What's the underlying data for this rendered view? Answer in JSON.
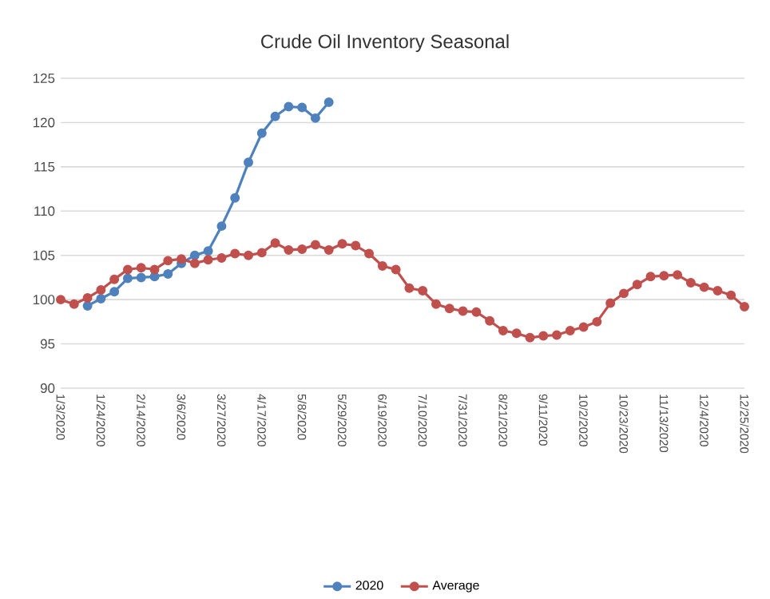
{
  "chart_data": {
    "type": "line",
    "title": "Crude Oil Inventory Seasonal",
    "categories": [
      "1/3/2020",
      null,
      null,
      "1/24/2020",
      null,
      null,
      "2/14/2020",
      null,
      null,
      "3/6/2020",
      null,
      null,
      "3/27/2020",
      null,
      null,
      "4/17/2020",
      null,
      null,
      "5/8/2020",
      null,
      null,
      "5/29/2020",
      null,
      null,
      "6/19/2020",
      null,
      null,
      "7/10/2020",
      null,
      null,
      "7/31/2020",
      null,
      null,
      "8/21/2020",
      null,
      null,
      "9/11/2020",
      null,
      null,
      "10/2/2020",
      null,
      null,
      "10/23/2020",
      null,
      null,
      "11/13/2020",
      null,
      null,
      "12/4/2020",
      null,
      null,
      "12/25/2020"
    ],
    "series": [
      {
        "name": "2020",
        "color": "#4f81bd",
        "values": [
          null,
          null,
          99.3,
          100.1,
          100.9,
          102.4,
          102.5,
          102.6,
          102.9,
          104.1,
          105.0,
          105.5,
          108.3,
          111.5,
          115.5,
          118.8,
          120.7,
          121.8,
          121.7,
          120.5,
          122.3,
          null,
          null,
          null,
          null,
          null,
          null,
          null,
          null,
          null,
          null,
          null,
          null,
          null,
          null,
          null,
          null,
          null,
          null,
          null,
          null,
          null,
          null,
          null,
          null,
          null,
          null,
          null,
          null,
          null,
          null,
          null
        ]
      },
      {
        "name": "Average",
        "color": "#c0504d",
        "values": [
          100,
          99.5,
          100.2,
          101.1,
          102.3,
          103.4,
          103.6,
          103.4,
          104.4,
          104.6,
          104.1,
          104.5,
          104.7,
          105.2,
          105.0,
          105.3,
          106.4,
          105.6,
          105.7,
          106.2,
          105.6,
          106.3,
          106.1,
          105.2,
          103.8,
          103.4,
          101.3,
          101.0,
          99.5,
          99.0,
          98.7,
          98.6,
          97.6,
          96.5,
          96.2,
          95.7,
          95.9,
          96.0,
          96.5,
          96.9,
          97.5,
          99.6,
          100.7,
          101.7,
          102.6,
          102.7,
          102.8,
          101.9,
          101.4,
          101.0,
          100.5,
          99.2
        ]
      }
    ],
    "ylim": [
      90,
      125
    ],
    "yticks": [
      90,
      95,
      100,
      105,
      110,
      115,
      120,
      125
    ],
    "grid": "y",
    "legend": "bottom",
    "marker": "circle",
    "line_style": "solid"
  }
}
